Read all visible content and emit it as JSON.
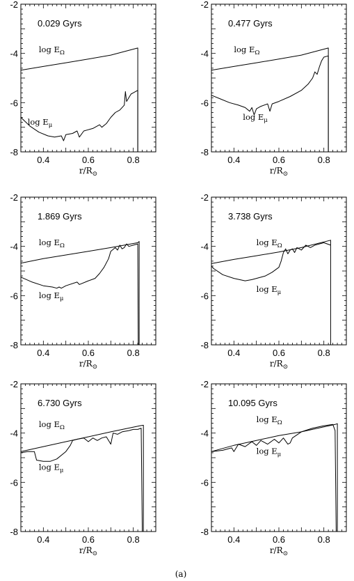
{
  "figure": {
    "caption": "(a)"
  },
  "chart_data": [
    {
      "type": "line",
      "age_label": "0.029 Gyrs",
      "xlabel": "r/R⊙",
      "xlim": [
        0.3,
        0.9
      ],
      "ylim": [
        -8,
        -2
      ],
      "xticks": [
        "0.4",
        "0.6",
        "0.8"
      ],
      "yticks": [
        "-2",
        "-4",
        "-6",
        "-8"
      ],
      "series": [
        {
          "name": "log EΩ",
          "x": [
            0.3,
            0.4,
            0.5,
            0.6,
            0.7,
            0.82,
            0.82
          ],
          "y": [
            -4.68,
            -4.53,
            -4.38,
            -4.23,
            -4.07,
            -3.78,
            -8.0
          ]
        },
        {
          "name": "log Eμ",
          "x": [
            0.3,
            0.34,
            0.38,
            0.42,
            0.45,
            0.48,
            0.49,
            0.5,
            0.53,
            0.55,
            0.56,
            0.58,
            0.6,
            0.62,
            0.65,
            0.66,
            0.68,
            0.7,
            0.72,
            0.74,
            0.75,
            0.76,
            0.765,
            0.77,
            0.79,
            0.8,
            0.82,
            0.82
          ],
          "y": [
            -6.6,
            -6.95,
            -7.2,
            -7.35,
            -7.4,
            -7.35,
            -7.55,
            -7.3,
            -7.25,
            -7.15,
            -7.4,
            -7.15,
            -7.1,
            -7.05,
            -6.9,
            -7.0,
            -6.85,
            -6.6,
            -6.4,
            -6.3,
            -6.2,
            -6.1,
            -5.55,
            -5.95,
            -5.65,
            -5.6,
            -5.5,
            -8.0
          ]
        }
      ],
      "annotations": {
        "series_labels": [
          {
            "text": "log E",
            "sub": "Ω",
            "x": 0.38,
            "y": -3.95
          },
          {
            "text": "log E",
            "sub": "μ",
            "x": 0.33,
            "y": -6.9
          }
        ]
      }
    },
    {
      "type": "line",
      "age_label": "0.477 Gyrs",
      "xlabel": "r/R⊙",
      "xlim": [
        0.3,
        0.9
      ],
      "ylim": [
        -8,
        -2
      ],
      "xticks": [
        "0.4",
        "0.6",
        "0.8"
      ],
      "yticks": [
        "-2",
        "-4",
        "-6",
        "-8"
      ],
      "series": [
        {
          "name": "log EΩ",
          "x": [
            0.3,
            0.4,
            0.5,
            0.6,
            0.7,
            0.82,
            0.82
          ],
          "y": [
            -4.68,
            -4.53,
            -4.38,
            -4.23,
            -4.07,
            -3.78,
            -8.0
          ]
        },
        {
          "name": "log Eμ",
          "x": [
            0.3,
            0.34,
            0.38,
            0.42,
            0.45,
            0.47,
            0.48,
            0.49,
            0.5,
            0.52,
            0.55,
            0.56,
            0.57,
            0.6,
            0.65,
            0.7,
            0.73,
            0.75,
            0.76,
            0.77,
            0.78,
            0.79,
            0.8,
            0.82,
            0.82
          ],
          "y": [
            -5.7,
            -5.85,
            -6.0,
            -6.1,
            -6.2,
            -6.35,
            -6.2,
            -6.5,
            -6.25,
            -6.15,
            -6.05,
            -6.35,
            -6.05,
            -5.95,
            -5.75,
            -5.5,
            -5.25,
            -5.0,
            -4.75,
            -4.85,
            -4.55,
            -4.3,
            -4.15,
            -4.1,
            -8.0
          ]
        }
      ],
      "annotations": {
        "series_labels": [
          {
            "text": "log E",
            "sub": "Ω",
            "x": 0.4,
            "y": -3.95
          },
          {
            "text": "log E",
            "sub": "μ",
            "x": 0.44,
            "y": -6.7
          }
        ]
      }
    },
    {
      "type": "line",
      "age_label": "1.869 Gyrs",
      "xlabel": "r/R⊙",
      "xlim": [
        0.3,
        0.9
      ],
      "ylim": [
        -8,
        -2
      ],
      "xticks": [
        "0.4",
        "0.6",
        "0.8"
      ],
      "yticks": [
        "-2",
        "-4",
        "-6",
        "-8"
      ],
      "series": [
        {
          "name": "log EΩ",
          "x": [
            0.3,
            0.4,
            0.5,
            0.6,
            0.7,
            0.82,
            0.826,
            0.826
          ],
          "y": [
            -4.68,
            -4.5,
            -4.35,
            -4.2,
            -4.05,
            -3.85,
            -3.8,
            -8.0
          ]
        },
        {
          "name": "log Eμ",
          "x": [
            0.3,
            0.35,
            0.4,
            0.44,
            0.46,
            0.47,
            0.48,
            0.5,
            0.55,
            0.56,
            0.6,
            0.63,
            0.65,
            0.67,
            0.69,
            0.7,
            0.72,
            0.73,
            0.74,
            0.75,
            0.76,
            0.77,
            0.78,
            0.8,
            0.82,
            0.822
          ],
          "y": [
            -5.25,
            -5.45,
            -5.6,
            -5.65,
            -5.7,
            -5.65,
            -5.7,
            -5.6,
            -5.45,
            -5.55,
            -5.4,
            -5.3,
            -5.1,
            -4.85,
            -4.5,
            -4.2,
            -4.05,
            -4.15,
            -3.95,
            -4.1,
            -4.05,
            -3.9,
            -4.0,
            -3.95,
            -3.9,
            -8.0
          ]
        }
      ],
      "annotations": {
        "series_labels": [
          {
            "text": "log E",
            "sub": "Ω",
            "x": 0.38,
            "y": -3.95
          },
          {
            "text": "log E",
            "sub": "μ",
            "x": 0.38,
            "y": -6.1
          }
        ]
      }
    },
    {
      "type": "line",
      "age_label": "3.738 Gyrs",
      "xlabel": "r/R⊙",
      "xlim": [
        0.3,
        0.9
      ],
      "ylim": [
        -8,
        -2
      ],
      "xticks": [
        "0.4",
        "0.6",
        "0.8"
      ],
      "yticks": [
        "-2",
        "-4",
        "-6",
        "-8"
      ],
      "series": [
        {
          "name": "log EΩ",
          "x": [
            0.3,
            0.4,
            0.5,
            0.6,
            0.7,
            0.83,
            0.83
          ],
          "y": [
            -4.7,
            -4.53,
            -4.38,
            -4.23,
            -4.05,
            -3.75,
            -8.0
          ]
        },
        {
          "name": "log Eμ",
          "x": [
            0.3,
            0.31,
            0.35,
            0.4,
            0.45,
            0.48,
            0.5,
            0.54,
            0.57,
            0.6,
            0.61,
            0.62,
            0.63,
            0.64,
            0.65,
            0.66,
            0.67,
            0.68,
            0.7,
            0.72,
            0.74,
            0.76,
            0.8,
            0.83
          ],
          "y": [
            -4.8,
            -4.9,
            -5.15,
            -5.3,
            -5.4,
            -5.35,
            -5.3,
            -5.2,
            -5.05,
            -4.85,
            -4.6,
            -4.25,
            -4.1,
            -4.3,
            -4.15,
            -4.1,
            -4.25,
            -4.05,
            -4.15,
            -3.95,
            -4.05,
            -3.95,
            -3.85,
            -3.95
          ]
        }
      ],
      "annotations": {
        "series_labels": [
          {
            "text": "log E",
            "sub": "Ω",
            "x": 0.5,
            "y": -3.95
          },
          {
            "text": "log E",
            "sub": "μ",
            "x": 0.5,
            "y": -5.85
          }
        ]
      }
    },
    {
      "type": "line",
      "age_label": "6.730 Gyrs",
      "xlabel": "r/R⊙",
      "xlim": [
        0.3,
        0.9
      ],
      "ylim": [
        -8,
        -2
      ],
      "xticks": [
        "0.4",
        "0.6",
        "0.8"
      ],
      "yticks": [
        "-2",
        "-4",
        "-6",
        "-8"
      ],
      "series": [
        {
          "name": "log EΩ",
          "x": [
            0.3,
            0.4,
            0.5,
            0.6,
            0.7,
            0.83,
            0.845,
            0.845
          ],
          "y": [
            -4.75,
            -4.55,
            -4.35,
            -4.15,
            -3.95,
            -3.7,
            -3.68,
            -8.0
          ]
        },
        {
          "name": "log Eμ",
          "x": [
            0.3,
            0.33,
            0.36,
            0.37,
            0.4,
            0.43,
            0.46,
            0.5,
            0.52,
            0.53,
            0.55,
            0.58,
            0.6,
            0.62,
            0.64,
            0.66,
            0.68,
            0.69,
            0.7,
            0.71,
            0.73,
            0.75,
            0.78,
            0.8,
            0.82,
            0.835,
            0.84
          ],
          "y": [
            -4.8,
            -4.75,
            -4.75,
            -5.1,
            -5.15,
            -5.15,
            -5.05,
            -4.75,
            -4.5,
            -4.3,
            -4.25,
            -4.2,
            -4.35,
            -4.2,
            -4.3,
            -4.2,
            -4.15,
            -4.3,
            -4.45,
            -4.0,
            -4.05,
            -3.95,
            -3.9,
            -3.85,
            -3.85,
            -3.8,
            -8.0
          ]
        }
      ],
      "annotations": {
        "series_labels": [
          {
            "text": "log E",
            "sub": "Ω",
            "x": 0.38,
            "y": -3.75
          },
          {
            "text": "log E",
            "sub": "μ",
            "x": 0.38,
            "y": -5.5
          }
        ]
      }
    },
    {
      "type": "line",
      "age_label": "10.095 Gyrs",
      "xlabel": "r/R⊙",
      "xlim": [
        0.3,
        0.9
      ],
      "ylim": [
        -8,
        -2
      ],
      "xticks": [
        "0.4",
        "0.6",
        "0.8"
      ],
      "yticks": [
        "-2",
        "-4",
        "-6",
        "-8"
      ],
      "series": [
        {
          "name": "log EΩ",
          "x": [
            0.3,
            0.4,
            0.5,
            0.6,
            0.7,
            0.8,
            0.85,
            0.86,
            0.86
          ],
          "y": [
            -4.75,
            -4.5,
            -4.3,
            -4.1,
            -3.95,
            -3.75,
            -3.65,
            -3.62,
            -8.0
          ]
        },
        {
          "name": "log Eμ",
          "x": [
            0.3,
            0.35,
            0.39,
            0.4,
            0.42,
            0.45,
            0.48,
            0.5,
            0.52,
            0.55,
            0.58,
            0.6,
            0.62,
            0.64,
            0.65,
            0.66,
            0.7,
            0.75,
            0.8,
            0.84,
            0.85,
            0.855
          ],
          "y": [
            -4.75,
            -4.7,
            -4.6,
            -4.75,
            -4.45,
            -4.55,
            -4.35,
            -4.5,
            -4.3,
            -4.45,
            -4.25,
            -4.4,
            -4.2,
            -4.45,
            -4.4,
            -4.2,
            -3.95,
            -3.8,
            -3.7,
            -3.65,
            -3.9,
            -8.0
          ]
        }
      ],
      "annotations": {
        "series_labels": [
          {
            "text": "log E",
            "sub": "Ω",
            "x": 0.5,
            "y": -3.55
          },
          {
            "text": "log E",
            "sub": "μ",
            "x": 0.5,
            "y": -4.85
          }
        ]
      }
    }
  ]
}
